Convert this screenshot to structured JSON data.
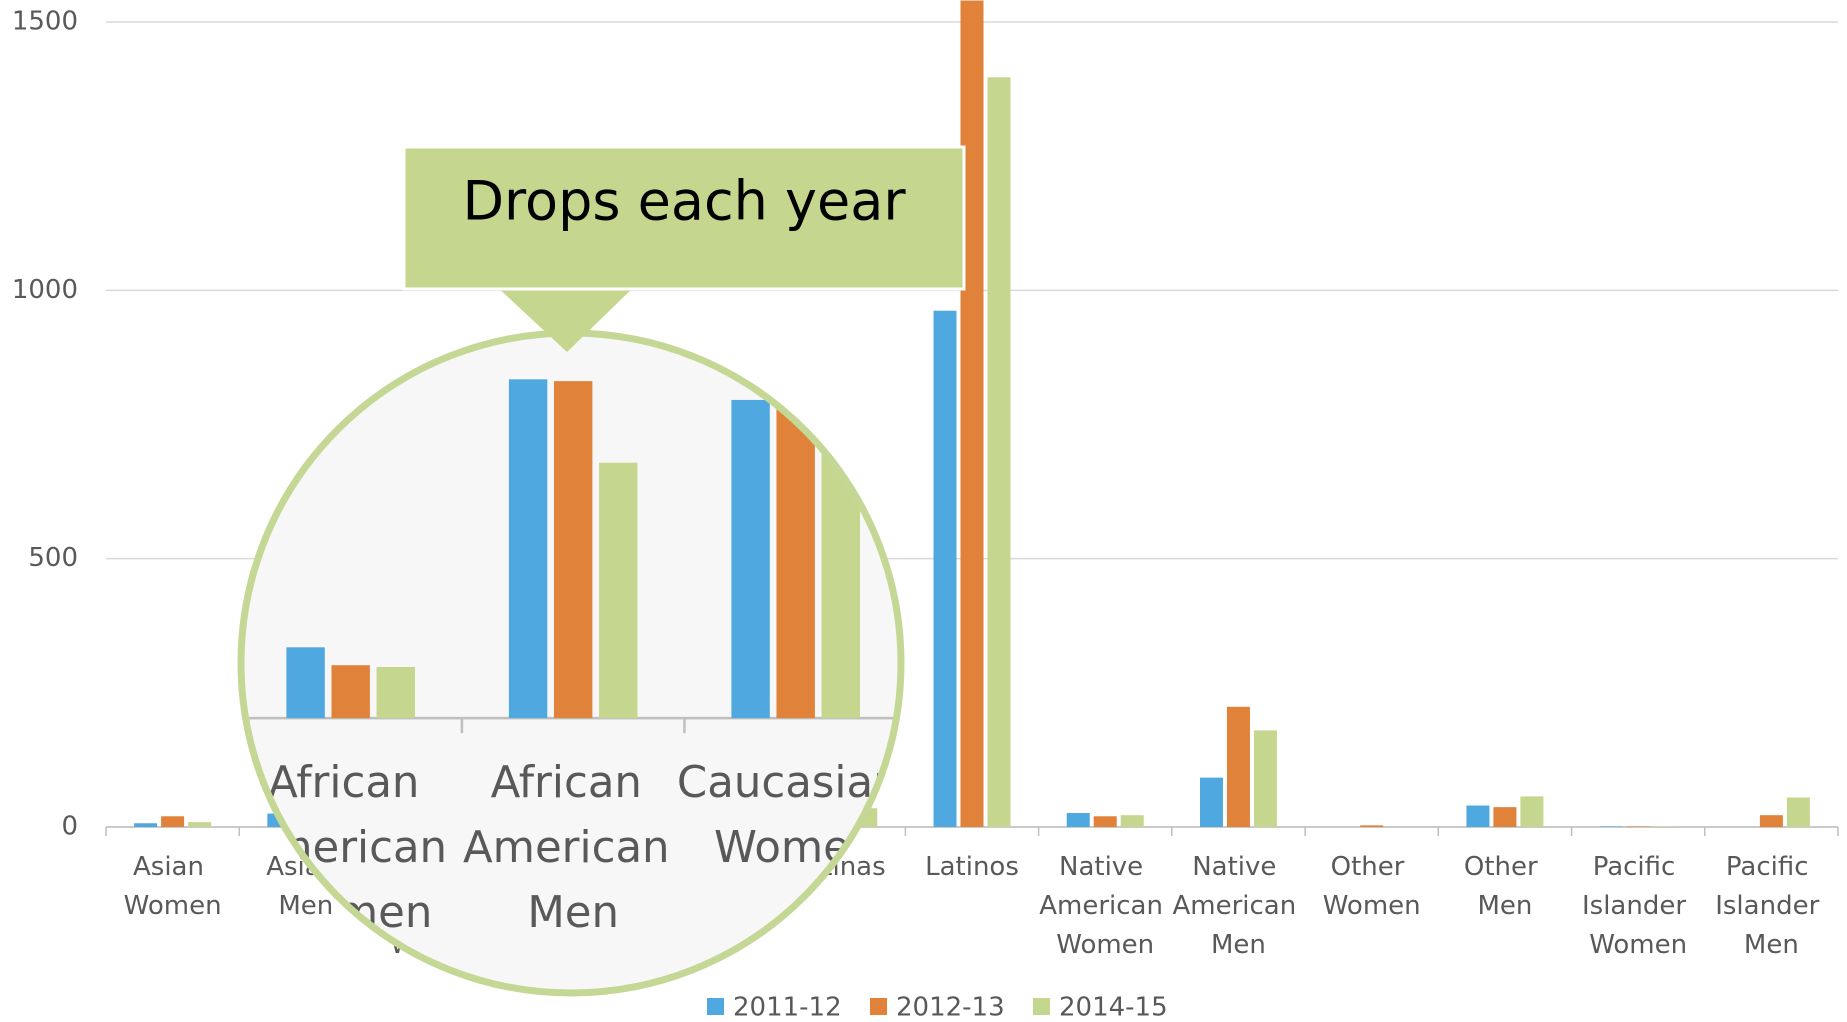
{
  "chart_data": {
    "type": "bar",
    "annotation": "Drops each year",
    "categories": [
      "Asian Women",
      "Asian Men",
      "African American Women",
      "African American Men",
      "Caucasian Women",
      "Latinas",
      "Latinos",
      "Native American Women",
      "Native American Men",
      "Other Women",
      "Other Men",
      "Pacific Islander Women",
      "Pacific Islander Men"
    ],
    "series": [
      {
        "name": "2011-12",
        "color": "#4fa8e0",
        "values": [
          7,
          25,
          79,
          378,
          355,
          30,
          962,
          26,
          92,
          0,
          40,
          1,
          0
        ]
      },
      {
        "name": "2012-13",
        "color": "#e0823a",
        "values": [
          20,
          20,
          59,
          376,
          349,
          25,
          1540,
          20,
          224,
          3,
          37,
          1,
          22
        ]
      },
      {
        "name": "2014-15",
        "color": "#c5d68f",
        "values": [
          9,
          15,
          57,
          285,
          300,
          35,
          1397,
          22,
          180,
          0,
          57,
          1,
          55
        ]
      }
    ],
    "ylim": [
      0,
      1500
    ],
    "yticks": [
      0,
      500,
      1000,
      1500
    ],
    "grid": true,
    "legend": "bottom"
  }
}
